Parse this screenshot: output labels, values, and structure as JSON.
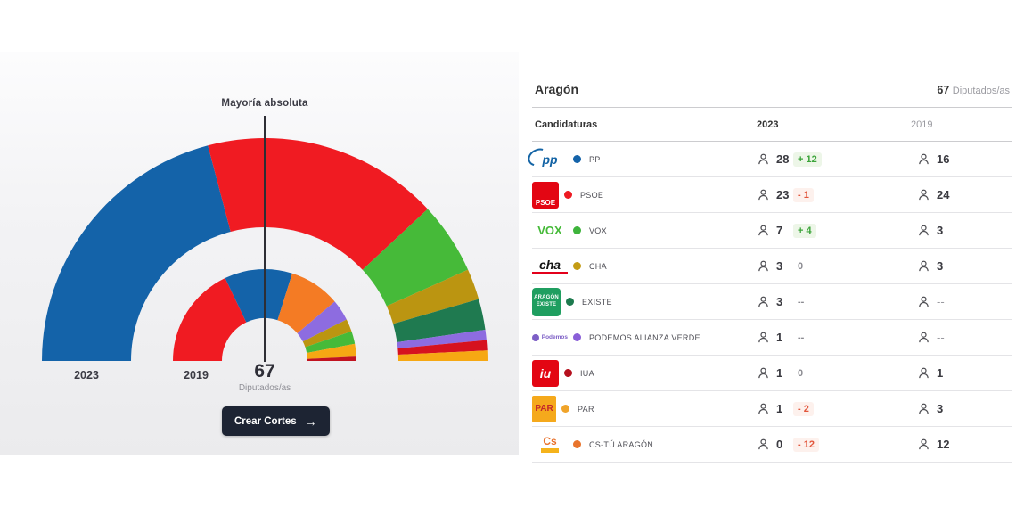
{
  "chart": {
    "majority_label": "Mayoría absoluta",
    "outer_label": "2023",
    "inner_label": "2019",
    "total": "67",
    "total_unit": "Diputados/as",
    "button": {
      "label": "Crear Cortes",
      "arrow": "→"
    }
  },
  "table_header": {
    "region": "Aragón",
    "total": "67",
    "unit": "Diputados/as",
    "columns": {
      "party": "Candidaturas",
      "y2023": "2023",
      "y2019": "2019"
    }
  },
  "parties": [
    {
      "name": "PP",
      "logo": "pp",
      "logo_text": "pp",
      "color": "#1463a9",
      "s2023": "28",
      "diff": "+ 12",
      "diff_type": "positive",
      "s2019": "16"
    },
    {
      "name": "PSOE",
      "logo": "psoe",
      "logo_text": "PSOE",
      "color": "#ee1b23",
      "s2023": "23",
      "diff": "- 1",
      "diff_type": "negative",
      "s2019": "24"
    },
    {
      "name": "VOX",
      "logo": "vox",
      "logo_text": "VOX",
      "color": "#3eb43c",
      "s2023": "7",
      "diff": "+ 4",
      "diff_type": "positive",
      "s2019": "3"
    },
    {
      "name": "CHA",
      "logo": "cha",
      "logo_text": "cha",
      "color": "#c49c14",
      "s2023": "3",
      "diff": "0",
      "diff_type": "neutral",
      "s2019": "3"
    },
    {
      "name": "EXISTE",
      "logo": "existe",
      "logo_text": "ARAGÓN EXISTE",
      "color": "#1d7a4e",
      "s2023": "3",
      "diff": "--",
      "diff_type": "neutral",
      "s2019": "--"
    },
    {
      "name": "PODEMOS ALIANZA VERDE",
      "logo": "podemos",
      "logo_text": "Podemos",
      "color": "#8a5fd8",
      "s2023": "1",
      "diff": "--",
      "diff_type": "neutral",
      "s2019": "--"
    },
    {
      "name": "IUA",
      "logo": "iu",
      "logo_text": "iu",
      "color": "#b5101e",
      "s2023": "1",
      "diff": "0",
      "diff_type": "neutral",
      "s2019": "1"
    },
    {
      "name": "PAR",
      "logo": "par",
      "logo_text": "PAR",
      "color": "#f0a42a",
      "s2023": "1",
      "diff": "- 2",
      "diff_type": "negative",
      "s2019": "3"
    },
    {
      "name": "CS-TÚ ARAGÓN",
      "logo": "cs",
      "logo_text": "Cs",
      "color": "#e9742c",
      "s2023": "0",
      "diff": "- 12",
      "diff_type": "negative",
      "s2019": "12"
    }
  ],
  "colors": {
    "positive": "#3ba43a",
    "negative": "#e2563c",
    "neutral": "#8b8b91",
    "majority_line": "#2e2e35",
    "button_bg": "#1d2433"
  },
  "chart_data": {
    "type": "pie",
    "variant": "semicircle-donut",
    "title": "Aragón",
    "total_seats": 67,
    "majority": {
      "label": "Mayoría absoluta",
      "seats": 34
    },
    "rings": [
      {
        "label": "2023",
        "position": "outer",
        "segments": [
          {
            "party": "PP",
            "seats": 28,
            "color": "#1463a9"
          },
          {
            "party": "PSOE",
            "seats": 23,
            "color": "#f01b22"
          },
          {
            "party": "VOX",
            "seats": 7,
            "color": "#46ba39"
          },
          {
            "party": "CHA",
            "seats": 3,
            "color": "#bb9511"
          },
          {
            "party": "EXISTE",
            "seats": 3,
            "color": "#1f7a50"
          },
          {
            "party": "PODEMOS ALIANZA VERDE",
            "seats": 1,
            "color": "#8d6ce0"
          },
          {
            "party": "IUA",
            "seats": 1,
            "color": "#d6121f"
          },
          {
            "party": "PAR",
            "seats": 1,
            "color": "#f6a813"
          }
        ]
      },
      {
        "label": "2019",
        "position": "inner",
        "segments": [
          {
            "party": "PSOE",
            "seats": 24,
            "color": "#f01b22"
          },
          {
            "party": "PP",
            "seats": 16,
            "color": "#1463a9"
          },
          {
            "party": "CS",
            "seats": 12,
            "color": "#f47b24"
          },
          {
            "party": "PODEMOS",
            "seats": 5,
            "color": "#8d6ce0"
          },
          {
            "party": "CHA",
            "seats": 3,
            "color": "#bb9511"
          },
          {
            "party": "VOX",
            "seats": 3,
            "color": "#46ba39"
          },
          {
            "party": "PAR",
            "seats": 3,
            "color": "#f6a813"
          },
          {
            "party": "IUA",
            "seats": 1,
            "color": "#c11320"
          }
        ]
      }
    ]
  }
}
